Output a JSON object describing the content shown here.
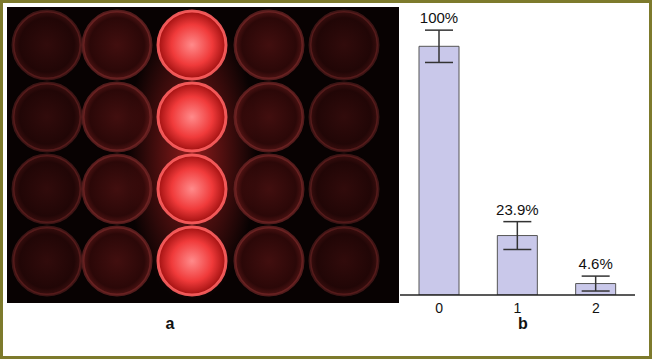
{
  "image_caption": "a",
  "chart_data": {
    "type": "bar",
    "categories": [
      "0",
      "1",
      "2"
    ],
    "values": [
      100,
      23.9,
      4.6
    ],
    "value_labels": [
      "100%",
      "23.9%",
      "4.6%"
    ],
    "errors": [
      6.5,
      5.6,
      3.0
    ],
    "data_labels": true,
    "tick_labels": "x",
    "ylim": [
      0,
      115
    ],
    "color": "#c9c8ea",
    "xlabel": "b",
    "grid": false
  }
}
